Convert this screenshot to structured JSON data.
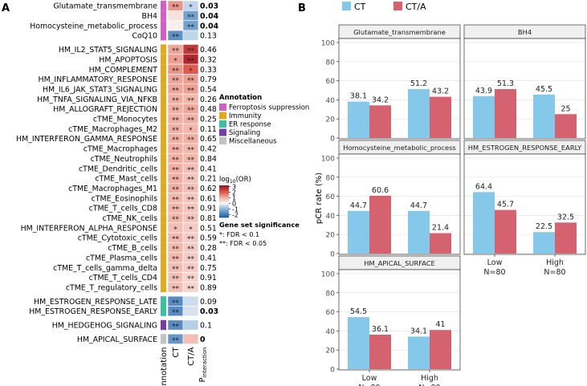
{
  "panel_a": {
    "label": "A",
    "row_labels": [
      "Glutamate_transmembrane",
      "BH4",
      "Homocysteine_metabolic_process",
      "CoQ10",
      "HM_IL2_STAT5_SIGNALING",
      "HM_APOPTOSIS",
      "HM_COMPLEMENT",
      "HM_INFLAMMATORY_RESPONSE",
      "HM_IL6_JAK_STAT3_SIGNALING",
      "HM_TNFA_SIGNALING_VIA_NFKB",
      "HM_ALLOGRAFT_REJECTION",
      "cTME_Monocytes",
      "cTME_Macrophages_M2",
      "HM_INTERFERON_GAMMA_RESPONSE",
      "cTME_Macrophages",
      "cTME_Neutrophils",
      "cTME_Dendritic_cells",
      "cTME_Mast_cells",
      "cTME_Macrophages_M1",
      "cTME_Eosinophils",
      "cTME_T_cells_CD8",
      "cTME_NK_cells",
      "HM_INTERFERON_ALPHA_RESPONSE",
      "cTME_Cytotoxic_cells",
      "cTME_B_cells",
      "cTME_Plasma_cells",
      "cTME_T_cells_gamma_delta",
      "cTME_T_cells_CD4",
      "cTME_T_regulatory_cells",
      "HM_ESTROGEN_RESPONSE_LATE",
      "HM_ESTROGEN_RESPONSE_EARLY",
      "HM_HEDGEHOG_SIGNALING",
      "HM_APICAL_SURFACE"
    ],
    "row_groups": [
      [
        0,
        3
      ],
      [
        4,
        28
      ],
      [
        29,
        30
      ],
      [
        31,
        31
      ],
      [
        32,
        32
      ]
    ],
    "annotation": [
      "ferroptosis",
      "ferroptosis",
      "ferroptosis",
      "ferroptosis",
      "immunity",
      "immunity",
      "immunity",
      "immunity",
      "immunity",
      "immunity",
      "immunity",
      "immunity",
      "immunity",
      "immunity",
      "immunity",
      "immunity",
      "immunity",
      "immunity",
      "immunity",
      "immunity",
      "immunity",
      "immunity",
      "immunity",
      "immunity",
      "immunity",
      "immunity",
      "immunity",
      "immunity",
      "immunity",
      "er",
      "er",
      "signaling",
      "misc"
    ],
    "log10_or_ct": [
      1.3,
      0.3,
      0.1,
      -1.6,
      1.1,
      1.2,
      1.3,
      1.1,
      1.1,
      1.0,
      1.0,
      1.0,
      1.0,
      1.0,
      1.0,
      1.0,
      1.0,
      1.0,
      1.0,
      0.9,
      0.9,
      0.9,
      0.8,
      0.9,
      0.9,
      0.9,
      0.8,
      0.8,
      0.8,
      -1.7,
      -1.7,
      -1.7,
      -1.5
    ],
    "log10_or_cta": [
      -0.5,
      -1.3,
      -1.3,
      -0.5,
      2.5,
      2.8,
      2.0,
      1.2,
      1.2,
      0.9,
      1.1,
      1.0,
      0.9,
      1.0,
      0.9,
      0.9,
      0.8,
      0.7,
      0.8,
      0.7,
      0.7,
      0.7,
      0.6,
      0.6,
      0.6,
      0.6,
      0.6,
      0.5,
      0.5,
      -0.4,
      -0.3,
      -0.6,
      0.8
    ],
    "sig_ct": [
      "**",
      "",
      "",
      "**",
      "**",
      "*",
      "**",
      "**",
      "**",
      "**",
      "**",
      "**",
      "**",
      "**",
      "**",
      "**",
      "**",
      "**",
      "**",
      "**",
      "**",
      "**",
      "*",
      "**",
      "**",
      "**",
      "**",
      "**",
      "**",
      "**",
      "**",
      "**",
      "**"
    ],
    "sig_cta": [
      "*",
      "**",
      "**",
      "",
      "**",
      "**",
      "*",
      "**",
      "**",
      "**",
      "**",
      "**",
      "*",
      "**",
      "**",
      "**",
      "**",
      "**",
      "**",
      "**",
      "**",
      "**",
      "*",
      "**",
      "**",
      "**",
      "**",
      "**",
      "**",
      "",
      "",
      "",
      ""
    ],
    "p_interaction": [
      "0.03",
      "0.04",
      "0.04",
      "0.13",
      "0.46",
      "0.32",
      "0.33",
      "0.79",
      "0.54",
      "0.26",
      "0.48",
      "0.25",
      "0.11",
      "0.65",
      "0.42",
      "0.84",
      "0.41",
      "0.21",
      "0.62",
      "0.61",
      "0.91",
      "0.81",
      "0.51",
      "0.59",
      "0.28",
      "0.41",
      "0.75",
      "0.91",
      "0.89",
      "0.09",
      "0.03",
      "0.1",
      "0"
    ],
    "p_bold": [
      true,
      true,
      true,
      false,
      false,
      false,
      false,
      false,
      false,
      false,
      false,
      false,
      false,
      false,
      false,
      false,
      false,
      false,
      false,
      false,
      false,
      false,
      false,
      false,
      false,
      false,
      false,
      false,
      false,
      false,
      true,
      false,
      true
    ],
    "col_labels": [
      "Annotation",
      "CT",
      "CT/A"
    ],
    "p_label_main": "P",
    "p_label_sub": "interaction",
    "annotation_legend": {
      "title": "Annotation",
      "items": [
        {
          "key": "ferroptosis",
          "label": "Ferroptosis suppression"
        },
        {
          "key": "immunity",
          "label": "Immunity"
        },
        {
          "key": "er",
          "label": "ER response"
        },
        {
          "key": "signaling",
          "label": "Signaling"
        },
        {
          "key": "misc",
          "label": "Miscellaneous"
        }
      ]
    },
    "annotation_colors": {
      "ferroptosis": "#d45fc4",
      "immunity": "#e0ab1b",
      "er": "#3cbfa1",
      "signaling": "#7a3aa8",
      "misc": "#c2c2c2"
    },
    "color_legend": {
      "title_main": "log",
      "title_sub": "10",
      "title_tail": "(OR)",
      "ticks": [
        "3",
        "2",
        "1",
        "0",
        "-1",
        "-2"
      ],
      "range": [
        -2.5,
        3.2
      ]
    },
    "sig_legend": {
      "title": "Gene set significance",
      "items": [
        "*: FDR < 0.1",
        "**: FDR < 0.05"
      ]
    }
  },
  "chart_data": {
    "type": "bar",
    "panel_label": "B",
    "legend": [
      "CT",
      "CT/A"
    ],
    "colors": {
      "CT": "#85c8ea",
      "CT/A": "#d4636f"
    },
    "ylabel": "pCR rate (%)",
    "ylim": [
      0,
      100
    ],
    "yticks": [
      0,
      20,
      40,
      60,
      80,
      100
    ],
    "categories": [
      "Low",
      "High"
    ],
    "category_n": [
      "N=80",
      "N=80"
    ],
    "facets": [
      {
        "title": "Glutamate_transmembrane",
        "ct": [
          38.1,
          51.2
        ],
        "cta": [
          34.2,
          43.2
        ],
        "ct_labels": [
          "38.1",
          "51.2"
        ],
        "cta_labels": [
          "34.2",
          "43.2"
        ]
      },
      {
        "title": "BH4",
        "ct": [
          43.9,
          45.5
        ],
        "cta": [
          51.3,
          25
        ],
        "ct_labels": [
          "43.9",
          "45.5"
        ],
        "cta_labels": [
          "51.3",
          "25"
        ]
      },
      {
        "title": "Homocysteine_metabolic_process",
        "ct": [
          44.7,
          44.7
        ],
        "cta": [
          60.6,
          21.4
        ],
        "ct_labels": [
          "44.7",
          "44.7"
        ],
        "cta_labels": [
          "60.6",
          "21.4"
        ]
      },
      {
        "title": "HM_ESTROGEN_RESPONSE_EARLY",
        "ct": [
          64.4,
          22.5
        ],
        "cta": [
          45.7,
          32.5
        ],
        "ct_labels": [
          "64.4",
          "22.5"
        ],
        "cta_labels": [
          "45.7",
          "32.5"
        ]
      },
      {
        "title": "HM_APICAL_SURFACE",
        "ct": [
          54.5,
          34.1
        ],
        "cta": [
          36.1,
          41
        ],
        "ct_labels": [
          "54.5",
          "34.1"
        ],
        "cta_labels": [
          "36.1",
          "41"
        ]
      }
    ]
  }
}
